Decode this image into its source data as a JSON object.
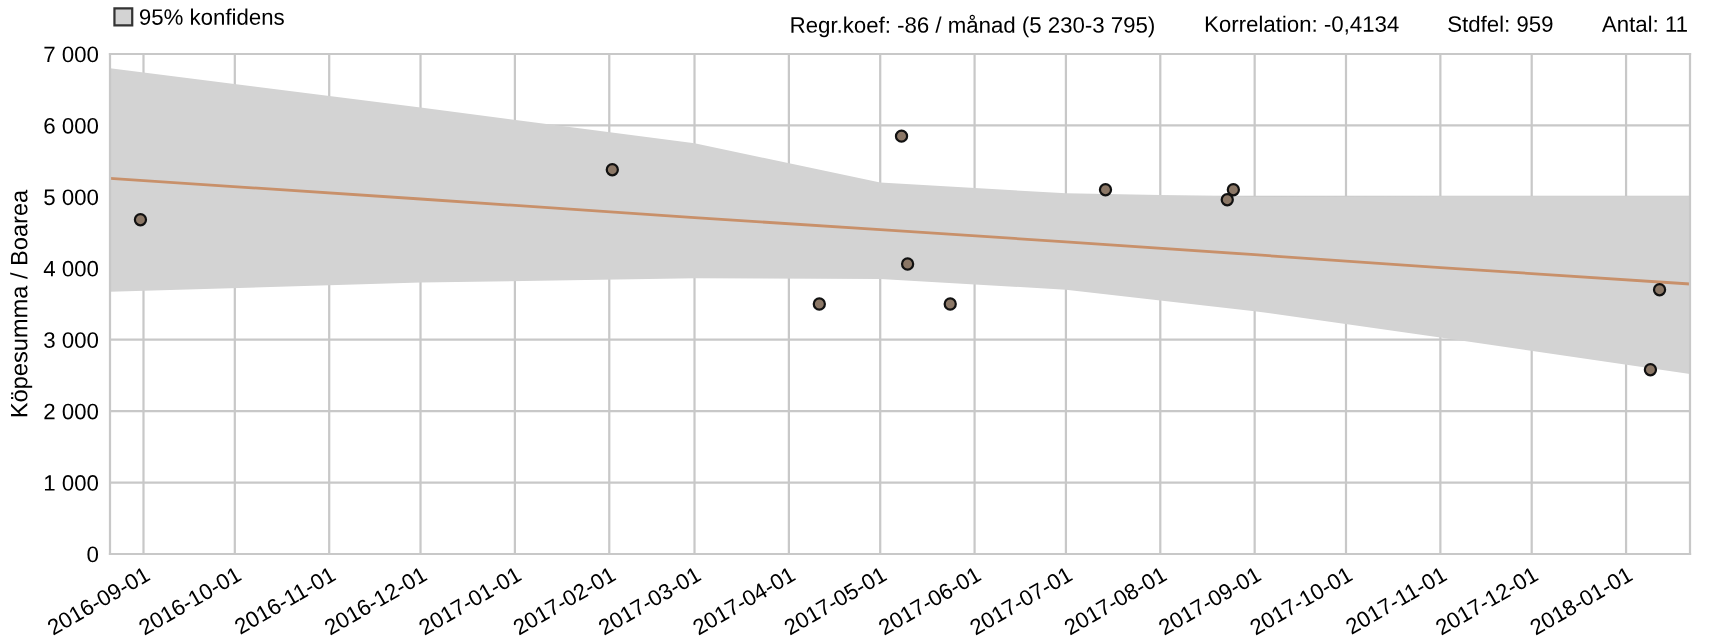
{
  "chart_data": {
    "type": "scatter",
    "ylabel": "Köpesumma / Boarea",
    "annotations": [
      "Regr.koef: -86 / månad (5 230-3 795)",
      "Korrelation: -0,4134",
      "Stdfel: 959",
      "Antal: 11"
    ],
    "series": [
      {
        "type": "line",
        "name": "95% konfidens",
        "color": "#c8906a",
        "x": [
          "2016-08-21",
          "2016-12-01",
          "2017-03-01",
          "2017-05-01",
          "2017-07-01",
          "2017-09-01",
          "2017-11-01",
          "2018-01-22"
        ],
        "values": [
          5260,
          4970,
          4710,
          4540,
          4370,
          4190,
          4010,
          3780
        ],
        "lower": [
          3670,
          3800,
          3860,
          3850,
          3700,
          3400,
          3030,
          2520
        ],
        "upper": [
          6800,
          6250,
          5750,
          5200,
          5050,
          5000,
          5010,
          5010
        ]
      },
      {
        "color": "#8b7766",
        "marker": "circle",
        "x": [
          "2016-08-31",
          "2017-02-02",
          "2017-04-11",
          "2017-05-08",
          "2017-05-10",
          "2017-05-24",
          "2017-07-14",
          "2017-08-23",
          "2017-08-25",
          "2018-01-09",
          "2018-01-12"
        ],
        "values": [
          4680,
          5380,
          3500,
          5850,
          4060,
          3500,
          5100,
          4960,
          5100,
          2580,
          3700
        ]
      }
    ],
    "xlim": [
      "2016-08-21",
      "2018-01-22"
    ],
    "xticks": [
      "2016-09-01",
      "2016-10-01",
      "2016-11-01",
      "2016-12-01",
      "2017-01-01",
      "2017-02-01",
      "2017-03-01",
      "2017-04-01",
      "2017-05-01",
      "2017-06-01",
      "2017-07-01",
      "2017-08-01",
      "2017-09-01",
      "2017-10-01",
      "2017-11-01",
      "2017-12-01",
      "2018-01-01"
    ],
    "ylim": [
      0,
      7000
    ],
    "yticks": [
      0,
      {
        "value": 1000,
        "label": "1 000"
      },
      {
        "value": 2000,
        "label": "2 000"
      },
      {
        "value": 3000,
        "label": "3 000"
      },
      {
        "value": 4000,
        "label": "4 000"
      },
      {
        "value": 5000,
        "label": "5 000"
      },
      {
        "value": 6000,
        "label": "6 000"
      },
      {
        "value": 7000,
        "label": "7 000"
      }
    ],
    "grid": true,
    "legend": "top left"
  }
}
